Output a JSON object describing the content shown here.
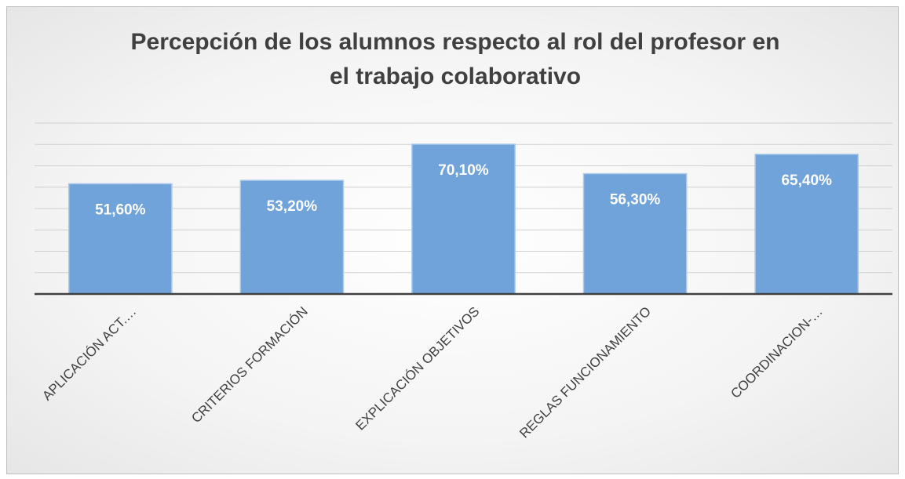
{
  "chart_data": {
    "type": "bar",
    "title": "Percepción de los alumnos respecto al rol del profesor en el trabajo colaborativo",
    "categories": [
      "APLICACIÓN ACT.…",
      "CRITERIOS FORMACIÓN",
      "EXPLICACIÓN OBJETIVOS",
      "REGLAS FUNCIONAMIENTO",
      "COORDINACION-…"
    ],
    "values": [
      51.6,
      53.2,
      70.1,
      56.3,
      65.4
    ],
    "value_labels": [
      "51,60%",
      "53,20%",
      "70,10%",
      "56,30%",
      "65,40%"
    ],
    "color": "#6fa3d9",
    "ylim": [
      0,
      80
    ],
    "yticks": [
      0,
      10,
      20,
      30,
      40,
      50,
      60,
      70,
      80
    ],
    "grid": true
  }
}
